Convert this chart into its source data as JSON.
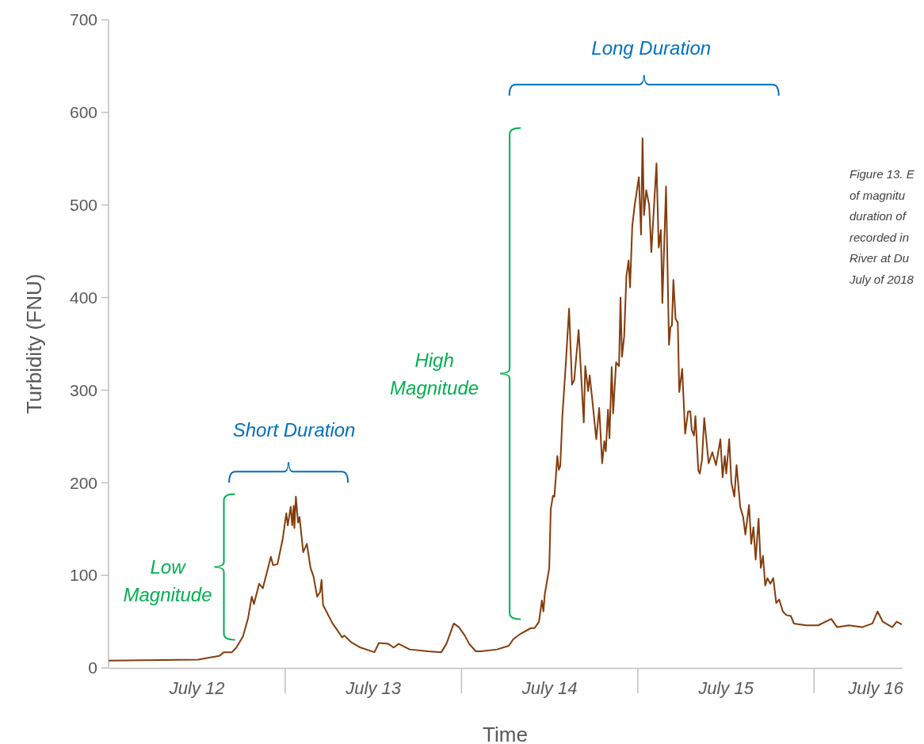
{
  "chart_data": {
    "type": "line",
    "xlabel": "Time",
    "ylabel": "Turbidity (FNU)",
    "xlim": [
      "--07-12T00:00",
      "--07-16T12:00"
    ],
    "xticks": [
      {
        "value": "--07-12T12:00",
        "label": "July 12"
      },
      {
        "value": "--07-13T00:00",
        "label": null
      },
      {
        "value": "--07-13T12:00",
        "label": "July 13"
      },
      {
        "value": "--07-14T00:00",
        "label": null
      },
      {
        "value": "--07-14T12:00",
        "label": "July 14"
      },
      {
        "value": "--07-15T00:00",
        "label": null
      },
      {
        "value": "--07-15T12:00",
        "label": "July 15"
      },
      {
        "value": "--07-16T00:00",
        "label": null
      },
      {
        "value": "--07-16T08:24",
        "label": "July 16"
      }
    ],
    "ylim": [
      0,
      700
    ],
    "yticks": [
      0,
      100,
      200,
      300,
      400,
      500,
      600,
      700
    ],
    "grid": false,
    "x": [
      "--07-12T00:00",
      "--07-12T12:12",
      "--07-12T15:06",
      "--07-12T15:42",
      "--07-12T16:48",
      "--07-12T17:24",
      "--07-12T18:18",
      "--07-12T19:00",
      "--07-12T19:30",
      "--07-12T19:48",
      "--07-12T20:30",
      "--07-12T21:00",
      "--07-12T22:06",
      "--07-12T22:24",
      "--07-12T23:00",
      "--07-12T23:42",
      "--07-13T00:12",
      "--07-13T00:24",
      "--07-13T00:48",
      "--07-13T01:00",
      "--07-13T01:12",
      "--07-13T01:18",
      "--07-13T01:30",
      "--07-13T01:48",
      "--07-13T02:00",
      "--07-13T02:30",
      "--07-13T03:00",
      "--07-13T03:30",
      "--07-13T03:54",
      "--07-13T04:24",
      "--07-13T04:48",
      "--07-13T05:00",
      "--07-13T05:12",
      "--07-13T06:30",
      "--07-13T07:18",
      "--07-13T07:48",
      "--07-13T08:06",
      "--07-13T09:00",
      "--07-13T10:18",
      "--07-13T12:12",
      "--07-13T12:48",
      "--07-13T14:06",
      "--07-13T14:48",
      "--07-13T15:30",
      "--07-13T17:00",
      "--07-13T19:30",
      "--07-13T21:18",
      "--07-13T22:00",
      "--07-13T23:00",
      "--07-13T23:42",
      "--07-14T00:30",
      "--07-14T01:06",
      "--07-14T02:00",
      "--07-14T02:42",
      "--07-14T04:54",
      "--07-14T06:30",
      "--07-14T07:06",
      "--07-14T08:06",
      "--07-14T09:30",
      "--07-14T10:00",
      "--07-14T10:36",
      "--07-14T11:00",
      "--07-14T11:12",
      "--07-14T11:24",
      "--07-14T12:00",
      "--07-14T12:12",
      "--07-14T12:30",
      "--07-14T12:42",
      "--07-14T13:06",
      "--07-14T13:18",
      "--07-14T13:30",
      "--07-14T13:48",
      "--07-14T14:12",
      "--07-14T14:42",
      "--07-14T15:06",
      "--07-14T15:24",
      "--07-14T16:00",
      "--07-14T16:42",
      "--07-14T16:54",
      "--07-14T17:18",
      "--07-14T17:30",
      "--07-14T17:48",
      "--07-14T18:24",
      "--07-14T18:48",
      "--07-14T19:12",
      "--07-14T19:30",
      "--07-14T19:42",
      "--07-14T20:00",
      "--07-14T20:12",
      "--07-14T20:30",
      "--07-14T20:42",
      "--07-14T21:06",
      "--07-14T21:30",
      "--07-14T21:42",
      "--07-14T21:54",
      "--07-14T22:12",
      "--07-14T22:30",
      "--07-14T22:48",
      "--07-14T23:00",
      "--07-14T23:18",
      "--07-14T23:36",
      "--07-15T00:12",
      "--07-15T00:30",
      "--07-15T00:42",
      "--07-15T00:54",
      "--07-15T01:12",
      "--07-15T01:36",
      "--07-15T01:54",
      "--07-15T02:36",
      "--07-15T02:54",
      "--07-15T03:12",
      "--07-15T03:24",
      "--07-15T03:54",
      "--07-15T04:18",
      "--07-15T04:30",
      "--07-15T04:42",
      "--07-15T04:54",
      "--07-15T05:12",
      "--07-15T05:30",
      "--07-15T05:42",
      "--07-15T06:06",
      "--07-15T06:30",
      "--07-15T06:54",
      "--07-15T07:12",
      "--07-15T07:24",
      "--07-15T07:42",
      "--07-15T07:54",
      "--07-15T08:18",
      "--07-15T08:30",
      "--07-15T08:48",
      "--07-15T09:06",
      "--07-15T09:42",
      "--07-15T10:12",
      "--07-15T10:42",
      "--07-15T11:18",
      "--07-15T11:36",
      "--07-15T11:54",
      "--07-15T12:06",
      "--07-15T12:30",
      "--07-15T12:48",
      "--07-15T13:12",
      "--07-15T13:30",
      "--07-15T14:00",
      "--07-15T14:24",
      "--07-15T14:42",
      "--07-15T15:12",
      "--07-15T15:30",
      "--07-15T15:48",
      "--07-15T16:06",
      "--07-15T16:30",
      "--07-15T16:48",
      "--07-15T17:06",
      "--07-15T17:24",
      "--07-15T17:42",
      "--07-15T18:06",
      "--07-15T18:30",
      "--07-15T18:54",
      "--07-15T19:18",
      "--07-15T19:48",
      "--07-15T20:18",
      "--07-15T20:54",
      "--07-15T21:18",
      "--07-15T23:00",
      "--07-16T00:36",
      "--07-16T02:24",
      "--07-16T03:12",
      "--07-16T04:48",
      "--07-16T06:36",
      "--07-16T08:00",
      "--07-16T08:42",
      "--07-16T09:24",
      "--07-16T10:42",
      "--07-16T11:18",
      "--07-16T12:00"
    ],
    "series": [
      {
        "color": "#843c0c",
        "values": [
          8,
          9,
          13,
          17,
          17,
          22,
          34,
          54,
          77,
          69,
          91,
          86,
          120,
          111,
          112,
          139,
          167,
          154,
          174,
          154,
          175,
          151,
          185,
          157,
          163,
          125,
          134,
          108,
          99,
          77,
          82,
          95,
          68,
          48,
          39,
          33,
          35,
          28,
          22,
          17,
          27,
          26,
          22,
          26,
          20,
          18,
          17,
          26,
          48,
          44,
          35,
          26,
          18,
          18,
          20,
          24,
          31,
          37,
          43,
          43,
          50,
          73,
          61,
          80,
          108,
          171,
          186,
          185,
          229,
          214,
          218,
          274,
          322,
          388,
          306,
          311,
          365,
          265,
          326,
          299,
          316,
          294,
          247,
          281,
          221,
          245,
          234,
          279,
          248,
          325,
          275,
          330,
          326,
          400,
          336,
          358,
          423,
          440,
          411,
          477,
          498,
          530,
          468,
          572,
          489,
          516,
          500,
          449,
          545,
          454,
          473,
          394,
          520,
          349,
          368,
          370,
          419,
          377,
          373,
          298,
          323,
          253,
          277,
          277,
          257,
          251,
          272,
          213,
          210,
          225,
          270,
          221,
          233,
          219,
          247,
          206,
          229,
          210,
          247,
          200,
          185,
          219,
          174,
          163,
          144,
          176,
          134,
          152,
          117,
          161,
          108,
          121,
          89,
          97,
          91,
          97,
          70,
          74,
          61,
          57,
          56,
          48,
          46,
          46,
          53,
          44,
          46,
          44,
          48,
          61,
          50,
          44,
          50,
          47
        ]
      }
    ],
    "annotations": [
      "Low Magnitude",
      "Short Duration",
      "High Magnitude",
      "Long Duration",
      "Figure 13. E\nof magnitu\nduration of\nrecorded in\nRiver at Du\nJuly of 2018"
    ]
  }
}
